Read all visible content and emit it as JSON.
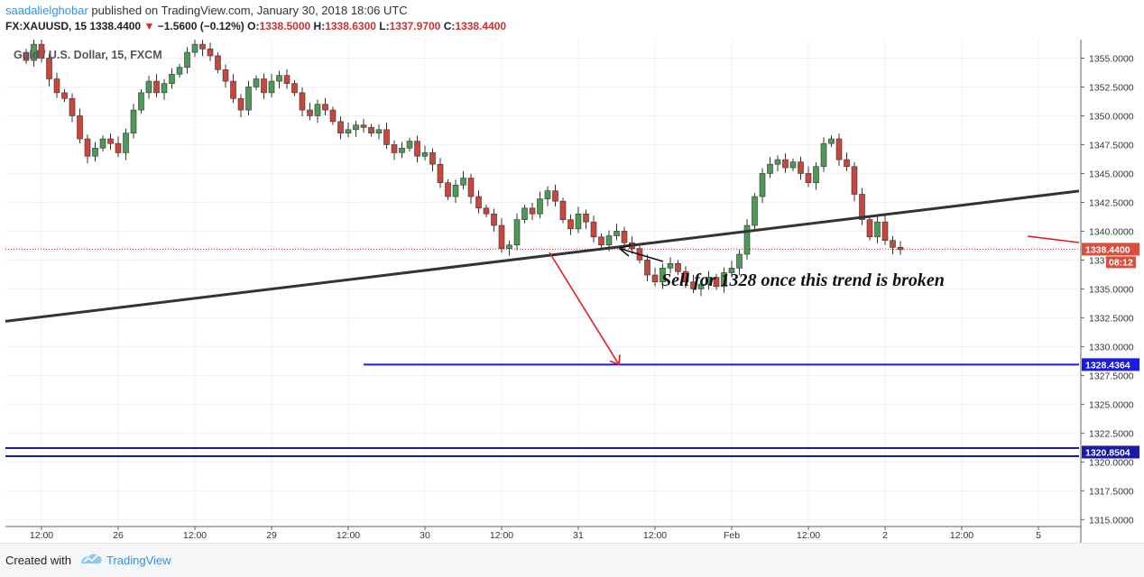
{
  "header": {
    "author": "saadalielghobar",
    "published": "published on TradingView.com, January 30, 2018 18:06 UTC",
    "symbol_line": "FX:XAUUSD, 15",
    "last": "1338.4400",
    "change_arrow": "▼",
    "change": "−1.5600 (−0.12%)",
    "o_label": "O:",
    "o": "1338.5000",
    "h_label": "H:",
    "h": "1338.6300",
    "l_label": "L:",
    "l": "1337.9700",
    "c_label": "C:",
    "c": "1338.4400"
  },
  "chart_data": {
    "type": "candlestick",
    "title": "Gold / U.S. Dollar, 15, FXCM",
    "ylim": [
      1314.4,
      1356.6
    ],
    "y_ticks": [
      1315,
      1317.5,
      1320,
      1322.5,
      1325,
      1327.5,
      1330,
      1332.5,
      1335,
      1337.5,
      1340,
      1342.5,
      1345,
      1347.5,
      1350,
      1352.5,
      1355
    ],
    "x_ticks": [
      {
        "label": "12:00",
        "i": 2
      },
      {
        "label": "26",
        "i": 12
      },
      {
        "label": "12:00",
        "i": 22
      },
      {
        "label": "29",
        "i": 32
      },
      {
        "label": "12:00",
        "i": 42
      },
      {
        "label": "30",
        "i": 52
      },
      {
        "label": "12:00",
        "i": 62
      },
      {
        "label": "31",
        "i": 72
      },
      {
        "label": "12:00",
        "i": 82
      },
      {
        "label": "Feb",
        "i": 92
      },
      {
        "label": "12:00",
        "i": 102
      },
      {
        "label": "2",
        "i": 112
      },
      {
        "label": "12:00",
        "i": 122
      },
      {
        "label": "5",
        "i": 132
      }
    ],
    "price_path": [
      1355.5,
      1354.8,
      1356.2,
      1355.0,
      1353.2,
      1352.0,
      1351.5,
      1350.0,
      1348.0,
      1346.5,
      1347.2,
      1348.0,
      1347.6,
      1346.8,
      1348.5,
      1350.5,
      1352.0,
      1353.0,
      1352.0,
      1352.8,
      1353.6,
      1354.2,
      1355.5,
      1356.2,
      1355.8,
      1355.2,
      1354.0,
      1353.0,
      1351.5,
      1350.5,
      1352.5,
      1353.2,
      1352.0,
      1353.0,
      1353.5,
      1352.8,
      1352.0,
      1350.5,
      1350.0,
      1351.0,
      1350.5,
      1349.5,
      1348.5,
      1348.8,
      1349.2,
      1349.0,
      1348.5,
      1348.8,
      1347.5,
      1346.8,
      1347.2,
      1347.8,
      1346.5,
      1346.8,
      1345.8,
      1344.2,
      1343.0,
      1344.0,
      1344.6,
      1343.0,
      1342.0,
      1341.5,
      1340.5,
      1338.5,
      1338.8,
      1341.0,
      1342.0,
      1341.5,
      1342.8,
      1343.5,
      1342.6,
      1341.0,
      1340.2,
      1341.5,
      1340.8,
      1339.5,
      1338.8,
      1339.6,
      1340.0,
      1339.0,
      1338.5,
      1337.5,
      1336.2,
      1335.6,
      1336.8,
      1337.2,
      1336.5,
      1335.6,
      1335.0,
      1335.4,
      1336.0,
      1335.2,
      1336.4,
      1336.8,
      1338.0,
      1340.5,
      1343.0,
      1345.0,
      1345.8,
      1346.2,
      1345.5,
      1346.0,
      1345.0,
      1344.2,
      1345.6,
      1347.6,
      1348.0,
      1346.2,
      1345.6,
      1343.2,
      1341.0,
      1339.5,
      1340.8,
      1339.2,
      1338.6,
      1338.4
    ],
    "last_price": 1338.44,
    "last_price_label": "1338.4400",
    "countdown_label": "08:12",
    "trendline": {
      "start": {
        "i": -5,
        "price": 1332.0
      },
      "end": {
        "i": 140,
        "price": 1343.7
      }
    },
    "target_level": {
      "price": 1328.4364,
      "label": "1328.4364",
      "start_i": 44
    },
    "support_level": {
      "price": 1320.8504,
      "label": "1320.8504",
      "band": [
        1320.5,
        1321.2
      ]
    },
    "annotation": "Sell for 1328 once this trend is broken"
  },
  "footer": {
    "created_with": "Created with",
    "brand": "TradingView"
  }
}
